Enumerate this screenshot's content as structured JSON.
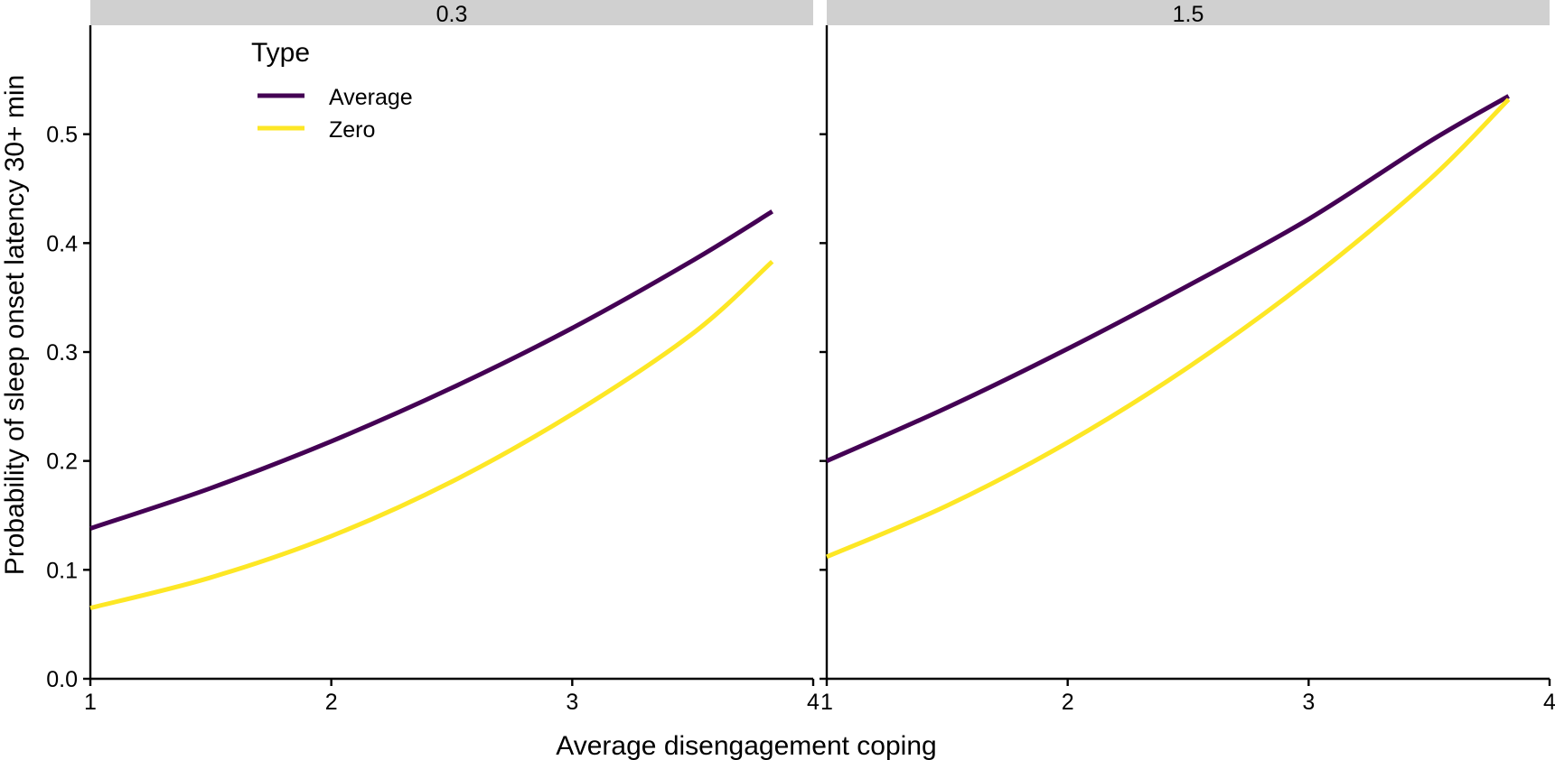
{
  "chart_data": {
    "type": "line",
    "xlabel": "Average disengagement coping",
    "ylabel": "Probability of sleep onset latency 30+ min",
    "xlim": [
      1,
      4
    ],
    "ylim": [
      0,
      0.6
    ],
    "x_ticks": [
      "1",
      "2",
      "3",
      "4"
    ],
    "y_ticks": [
      "0.0",
      "0.1",
      "0.2",
      "0.3",
      "0.4",
      "0.5"
    ],
    "legend": {
      "title": "Type",
      "position": "top-left",
      "entries": [
        "Average",
        "Zero"
      ]
    },
    "colors": {
      "Average": "#440154",
      "Zero": "#fde725"
    },
    "grid": false,
    "panels": [
      {
        "label": "0.3",
        "series": [
          {
            "name": "Average",
            "x": [
              1.0,
              1.5,
              2.0,
              2.5,
              3.0,
              3.5,
              3.83
            ],
            "y": [
              0.138,
              0.175,
              0.218,
              0.267,
              0.322,
              0.384,
              0.429
            ]
          },
          {
            "name": "Zero",
            "x": [
              1.0,
              1.5,
              2.0,
              2.5,
              3.0,
              3.5,
              3.83
            ],
            "y": [
              0.065,
              0.093,
              0.131,
              0.181,
              0.243,
              0.317,
              0.383
            ]
          }
        ]
      },
      {
        "label": "1.5",
        "series": [
          {
            "name": "Average",
            "x": [
              1.0,
              1.5,
              2.0,
              2.5,
              3.0,
              3.5,
              3.83
            ],
            "y": [
              0.2,
              0.249,
              0.303,
              0.361,
              0.422,
              0.493,
              0.535
            ]
          },
          {
            "name": "Zero",
            "x": [
              1.0,
              1.5,
              2.0,
              2.5,
              3.0,
              3.5,
              3.83
            ],
            "y": [
              0.112,
              0.159,
              0.217,
              0.286,
              0.366,
              0.458,
              0.532
            ]
          }
        ]
      }
    ]
  }
}
